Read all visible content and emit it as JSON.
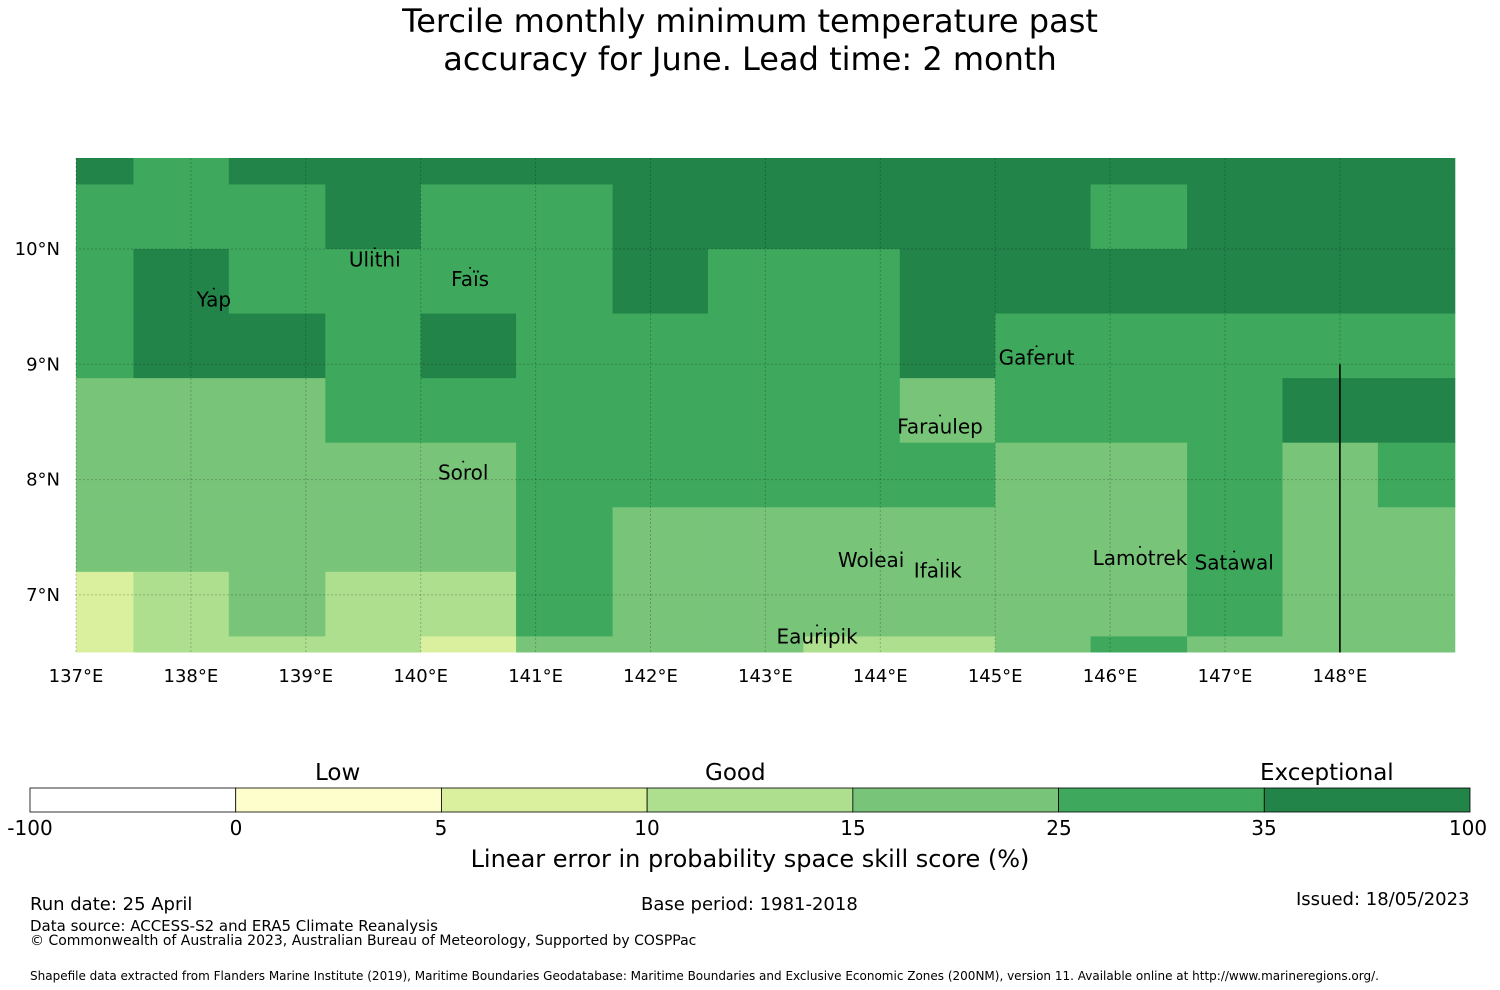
{
  "title_line1": "Tercile monthly minimum temperature past",
  "title_line2": "accuracy for June. Lead time: 2 month",
  "map": {
    "lon_range": [
      137,
      149
    ],
    "lat_range": [
      6.5,
      10.8
    ],
    "lon_ticks": [
      {
        "value": 137,
        "label": "137°E"
      },
      {
        "value": 138,
        "label": "138°E"
      },
      {
        "value": 139,
        "label": "139°E"
      },
      {
        "value": 140,
        "label": "140°E"
      },
      {
        "value": 141,
        "label": "141°E"
      },
      {
        "value": 142,
        "label": "142°E"
      },
      {
        "value": 143,
        "label": "143°E"
      },
      {
        "value": 144,
        "label": "144°E"
      },
      {
        "value": 145,
        "label": "145°E"
      },
      {
        "value": 146,
        "label": "146°E"
      },
      {
        "value": 147,
        "label": "147°E"
      },
      {
        "value": 148,
        "label": "148°E"
      }
    ],
    "lat_ticks": [
      {
        "value": 10,
        "label": "10°N"
      },
      {
        "value": 9,
        "label": "9°N"
      },
      {
        "value": 8,
        "label": "8°N"
      },
      {
        "value": 7,
        "label": "7°N"
      }
    ],
    "grid_lines": true,
    "class_colors": [
      "#ffffff",
      "#fefecc",
      "#daf09f",
      "#addf8e",
      "#78c57a",
      "#3ea95c",
      "#23844a"
    ],
    "grid_lons": [
      137,
      137.5,
      138.33,
      139.17,
      140,
      140.83,
      141.67,
      142.5,
      143.33,
      144.17,
      145,
      145.83,
      146.67,
      147.5,
      148.33,
      149
    ],
    "grid_lats": [
      10.8,
      10.56,
      10.0,
      9.44,
      8.88,
      8.32,
      7.76,
      7.2,
      6.64,
      6.5
    ],
    "grid_classes": [
      [
        6,
        5,
        6,
        6,
        6,
        6,
        6,
        6,
        6,
        6,
        6,
        6,
        6,
        6,
        6
      ],
      [
        5,
        5,
        5,
        6,
        5,
        5,
        6,
        6,
        6,
        6,
        6,
        5,
        6,
        6,
        6
      ],
      [
        5,
        6,
        5,
        5,
        5,
        5,
        6,
        5,
        5,
        6,
        6,
        6,
        6,
        6,
        6
      ],
      [
        5,
        6,
        6,
        5,
        6,
        5,
        5,
        5,
        5,
        6,
        5,
        5,
        5,
        5,
        5
      ],
      [
        4,
        4,
        4,
        5,
        5,
        5,
        5,
        5,
        5,
        4,
        5,
        5,
        5,
        6,
        6
      ],
      [
        4,
        4,
        4,
        4,
        4,
        5,
        5,
        5,
        5,
        5,
        4,
        4,
        5,
        4,
        5
      ],
      [
        4,
        4,
        4,
        4,
        4,
        5,
        4,
        4,
        4,
        4,
        4,
        4,
        5,
        4,
        4
      ],
      [
        2,
        3,
        4,
        3,
        3,
        5,
        4,
        4,
        4,
        4,
        4,
        4,
        5,
        4,
        4
      ],
      [
        2,
        3,
        3,
        3,
        2,
        4,
        4,
        4,
        3,
        3,
        4,
        5,
        4,
        4,
        4
      ]
    ],
    "boundary_line": {
      "lon": 148,
      "lat_from": 6.5,
      "lat_to": 9.0
    },
    "places": [
      {
        "name": "Yap",
        "lon": 138.2,
        "lat": 9.5
      },
      {
        "name": "Ulithi",
        "lon": 139.6,
        "lat": 9.85
      },
      {
        "name": "Faïs",
        "lon": 140.43,
        "lat": 9.68
      },
      {
        "name": "Gaferut",
        "lon": 145.36,
        "lat": 9.0
      },
      {
        "name": "Faraulep",
        "lon": 144.52,
        "lat": 8.4
      },
      {
        "name": "Sorol",
        "lon": 140.37,
        "lat": 8.0
      },
      {
        "name": "Woleai",
        "lon": 143.92,
        "lat": 7.24
      },
      {
        "name": "Ifalik",
        "lon": 144.5,
        "lat": 7.15
      },
      {
        "name": "Lamotrek",
        "lon": 146.26,
        "lat": 7.26
      },
      {
        "name": "Satawal",
        "lon": 147.08,
        "lat": 7.22
      },
      {
        "name": "Eauripik",
        "lon": 143.45,
        "lat": 6.58
      }
    ]
  },
  "colorbar": {
    "categories": [
      "Low",
      "Good",
      "Exceptional"
    ],
    "ticks": [
      "-100",
      "0",
      "5",
      "10",
      "15",
      "25",
      "35",
      "100"
    ],
    "colors": [
      "#ffffff",
      "#fefecc",
      "#daf09f",
      "#addf8e",
      "#78c57a",
      "#3ea95c",
      "#23844a"
    ],
    "label": "Linear error in probability space skill score (%)"
  },
  "footer": {
    "run_date": "Run date: 25 April",
    "base_period": "Base period: 1981-2018",
    "issued": "Issued: 18/05/2023",
    "data_source": "Data source: ACCESS-S2 and ERA5 Climate Reanalysis",
    "copyright": "© Commonwealth of Australia 2023, Australian Bureau of Meteorology, Supported by COSPPac",
    "shapefile": "Shapefile data extracted from Flanders Marine Institute (2019), Maritime Boundaries Geodatabase: Maritime Boundaries and Exclusive Economic Zones (200NM), version 11. Available online at http://www.marineregions.org/."
  }
}
